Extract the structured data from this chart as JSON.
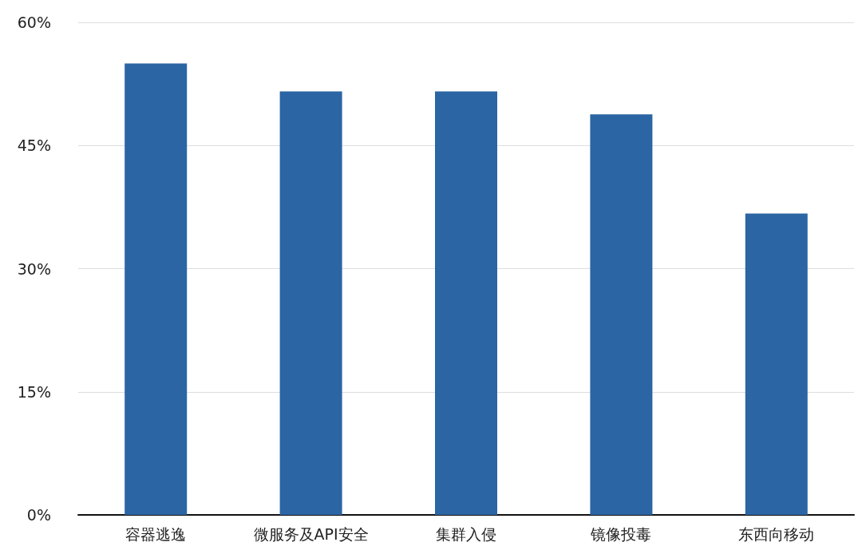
{
  "chart_data": {
    "type": "bar",
    "categories": [
      "容器逃逸",
      "微服务及API安全",
      "集群入侵",
      "镜像投毒",
      "东西向移动"
    ],
    "values": [
      55.0,
      51.6,
      51.6,
      48.8,
      36.7
    ],
    "color": "#2b65a3",
    "ylim": [
      0,
      60
    ],
    "yticks": [
      {
        "value": 0,
        "label": "0%"
      },
      {
        "value": 15,
        "label": "15%"
      },
      {
        "value": 30,
        "label": "30%"
      },
      {
        "value": 45,
        "label": "45%"
      },
      {
        "value": 60,
        "label": "60%"
      }
    ],
    "grid": "y"
  }
}
